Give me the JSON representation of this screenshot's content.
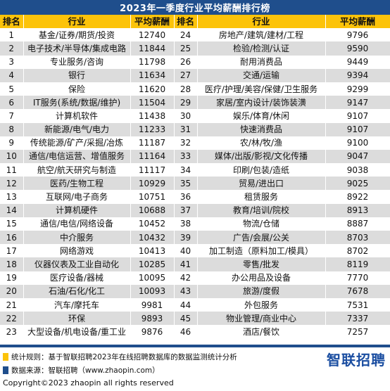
{
  "title": "2023年一季度行业平均薪酬排行榜",
  "headers": {
    "rank": "排名",
    "industry": "行业",
    "salary": "平均薪酬"
  },
  "left_rows": [
    {
      "rank": "1",
      "industry": "基金/证券/期货/投资",
      "salary": "12740"
    },
    {
      "rank": "2",
      "industry": "电子技术/半导体/集成电路",
      "salary": "11844"
    },
    {
      "rank": "3",
      "industry": "专业服务/咨询",
      "salary": "11798"
    },
    {
      "rank": "4",
      "industry": "银行",
      "salary": "11634"
    },
    {
      "rank": "5",
      "industry": "保险",
      "salary": "11620"
    },
    {
      "rank": "6",
      "industry": "IT服务(系统/数据/维护)",
      "salary": "11504"
    },
    {
      "rank": "7",
      "industry": "计算机软件",
      "salary": "11438"
    },
    {
      "rank": "8",
      "industry": "新能源/电气/电力",
      "salary": "11233"
    },
    {
      "rank": "9",
      "industry": "传统能源/矿产/采掘/冶炼",
      "salary": "11187"
    },
    {
      "rank": "10",
      "industry": "通信/电信运营、增值服务",
      "salary": "11164"
    },
    {
      "rank": "11",
      "industry": "航空/航天研究与制造",
      "salary": "11117"
    },
    {
      "rank": "12",
      "industry": "医药/生物工程",
      "salary": "10929"
    },
    {
      "rank": "13",
      "industry": "互联网/电子商务",
      "salary": "10751"
    },
    {
      "rank": "14",
      "industry": "计算机硬件",
      "salary": "10688"
    },
    {
      "rank": "15",
      "industry": "通信/电信/网络设备",
      "salary": "10452"
    },
    {
      "rank": "16",
      "industry": "中介服务",
      "salary": "10432"
    },
    {
      "rank": "17",
      "industry": "网络游戏",
      "salary": "10413"
    },
    {
      "rank": "18",
      "industry": "仪器仪表及工业自动化",
      "salary": "10285"
    },
    {
      "rank": "19",
      "industry": "医疗设备/器械",
      "salary": "10095"
    },
    {
      "rank": "20",
      "industry": "石油/石化/化工",
      "salary": "10093"
    },
    {
      "rank": "21",
      "industry": "汽车/摩托车",
      "salary": "9981"
    },
    {
      "rank": "22",
      "industry": "环保",
      "salary": "9893"
    },
    {
      "rank": "23",
      "industry": "大型设备/机电设备/重工业",
      "salary": "9876"
    }
  ],
  "right_rows": [
    {
      "rank": "24",
      "industry": "房地产/建筑/建材/工程",
      "salary": "9796"
    },
    {
      "rank": "25",
      "industry": "检验/检测/认证",
      "salary": "9590"
    },
    {
      "rank": "26",
      "industry": "耐用消费品",
      "salary": "9449"
    },
    {
      "rank": "27",
      "industry": "交通/运输",
      "salary": "9394"
    },
    {
      "rank": "28",
      "industry": "医疗/护理/美容/保健/卫生服务",
      "salary": "9299"
    },
    {
      "rank": "29",
      "industry": "家居/室内设计/装饰装潢",
      "salary": "9147"
    },
    {
      "rank": "30",
      "industry": "娱乐/体育/休闲",
      "salary": "9107"
    },
    {
      "rank": "31",
      "industry": "快速消费品",
      "salary": "9107"
    },
    {
      "rank": "32",
      "industry": "农/林/牧/渔",
      "salary": "9100"
    },
    {
      "rank": "33",
      "industry": "媒体/出版/影视/文化传播",
      "salary": "9047"
    },
    {
      "rank": "34",
      "industry": "印刷/包装/造纸",
      "salary": "9038"
    },
    {
      "rank": "35",
      "industry": "贸易/进出口",
      "salary": "9025"
    },
    {
      "rank": "36",
      "industry": "租赁服务",
      "salary": "8922"
    },
    {
      "rank": "37",
      "industry": "教育/培训/院校",
      "salary": "8913"
    },
    {
      "rank": "38",
      "industry": "物流/仓储",
      "salary": "8887"
    },
    {
      "rank": "39",
      "industry": "广告/会展/公关",
      "salary": "8703"
    },
    {
      "rank": "40",
      "industry": "加工制造（原料加工/模具）",
      "salary": "8702"
    },
    {
      "rank": "41",
      "industry": "零售/批发",
      "salary": "8119"
    },
    {
      "rank": "42",
      "industry": "办公用品及设备",
      "salary": "7770"
    },
    {
      "rank": "43",
      "industry": "旅游/度假",
      "salary": "7678"
    },
    {
      "rank": "44",
      "industry": "外包服务",
      "salary": "7531"
    },
    {
      "rank": "45",
      "industry": "物业管理/商业中心",
      "salary": "7337"
    },
    {
      "rank": "46",
      "industry": "酒店/餐饮",
      "salary": "7257"
    }
  ],
  "footer": {
    "rule_text": "统计规则：基于智联招聘2023年在线招聘数据库的数据监测统计分析",
    "source_text": "数据来源：智联招聘（www.zhaopin.com）",
    "logo_text": "智联招聘",
    "copyright": "Copyright©2023 zhaopin all rights reserved"
  },
  "colors": {
    "title_bg": "#1f4e8c",
    "header_bg": "#fcc30a",
    "stripe": "#dcdcdc",
    "logo": "#1b4ea1"
  }
}
